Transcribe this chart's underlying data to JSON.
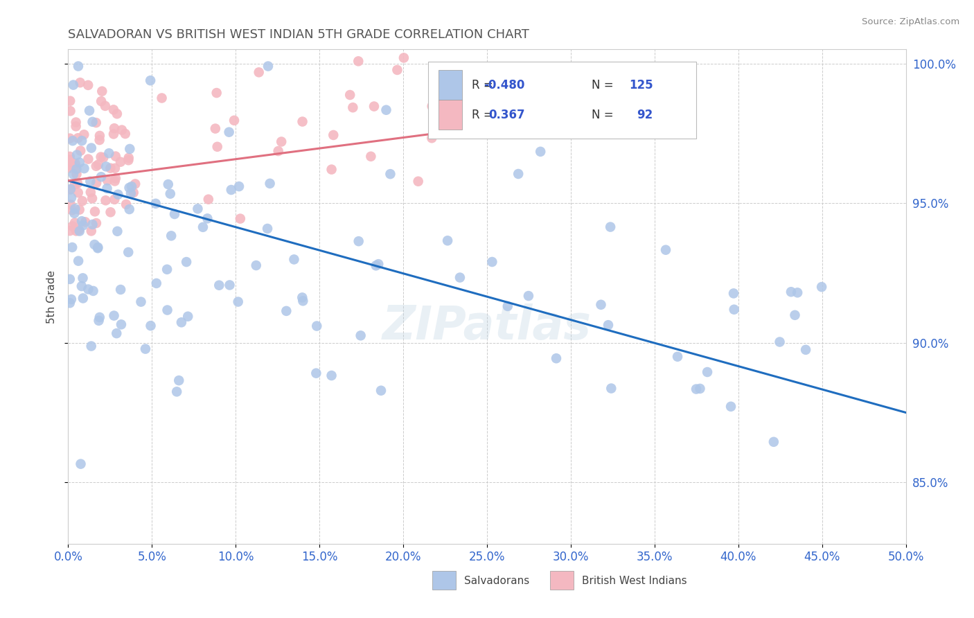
{
  "title": "SALVADORAN VS BRITISH WEST INDIAN 5TH GRADE CORRELATION CHART",
  "source": "Source: ZipAtlas.com",
  "ylabel": "5th Grade",
  "xmin": 0.0,
  "xmax": 0.5,
  "ymin": 0.828,
  "ymax": 1.005,
  "blue_R": -0.48,
  "blue_N": 125,
  "pink_R": 0.367,
  "pink_N": 92,
  "blue_color": "#aec6e8",
  "pink_color": "#f4b8c1",
  "blue_line_color": "#1f6dbf",
  "pink_line_color": "#e07080",
  "watermark": "ZIPatlas",
  "legend_blue_label": "Salvadorans",
  "legend_pink_label": "British West Indians"
}
